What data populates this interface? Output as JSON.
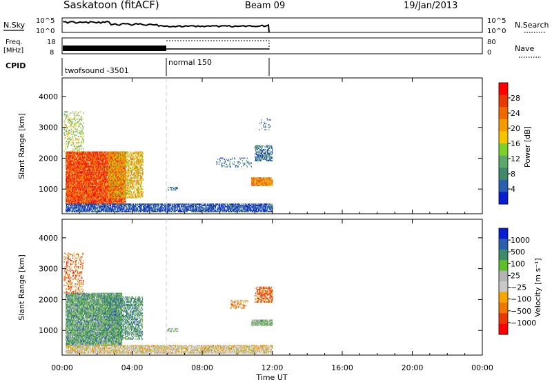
{
  "header": {
    "station": "Saskatoon (fitACF)",
    "beam": "Beam 09",
    "date": "19/Jan/2013"
  },
  "strips": {
    "nsky": {
      "label": "N.Sky",
      "tick_top": "10^5",
      "tick_bottom": "10^0",
      "right_tick_top": "10^5",
      "right_tick_bottom": "10^0"
    },
    "nsearch": {
      "label": "N.Search"
    },
    "freq": {
      "label_line1": "Freq.",
      "label_line2": "[MHz]",
      "tick_top": "18",
      "tick_bottom": "8",
      "right_tick_top": "80",
      "right_tick_bottom": "0"
    },
    "nave": {
      "label": "Nave"
    },
    "cpid": {
      "label": "CPID",
      "segment1": "twofsound -3501",
      "segment2": "normal 150"
    }
  },
  "colors": {
    "power": [
      "#0a1ed2",
      "#2a5fb0",
      "#3f8a6a",
      "#5ca86a",
      "#7dcf2a",
      "#f5c400",
      "#f59a00",
      "#f06a00",
      "#e83a00",
      "#ff0000"
    ],
    "velocity": [
      "#ff0000",
      "#e83a00",
      "#f07800",
      "#f5a500",
      "#c8c8c8",
      "#b4b4b4",
      "#5cc02a",
      "#3f8a6a",
      "#2a5fb0",
      "#0a1ed2"
    ]
  },
  "chart_data": [
    {
      "type": "heatmap",
      "panel": "power",
      "ylabel": "Slant Range [km]",
      "yticks": [
        "1000",
        "2000",
        "3000",
        "4000"
      ],
      "ylim": [
        200,
        4600
      ],
      "xlim": [
        0,
        24
      ],
      "xticks": [
        "00:00",
        "04:00",
        "08:00",
        "12:00",
        "16:00",
        "20:00",
        "00:00"
      ],
      "xlabel": "Time UT",
      "colorbar": {
        "label": "Power [dB]",
        "ticks": [
          "4",
          "8",
          "12",
          "16",
          "20",
          "24",
          "28"
        ],
        "range": [
          0,
          32
        ]
      },
      "regions": [
        {
          "t0": 0.2,
          "t1": 3.6,
          "r0": 500,
          "r1": 2200,
          "intensity": 0.82,
          "density": 0.92
        },
        {
          "t0": 0.1,
          "t1": 1.2,
          "r0": 2200,
          "r1": 3500,
          "intensity": 0.45,
          "density": 0.25
        },
        {
          "t0": 2.6,
          "t1": 4.6,
          "r0": 700,
          "r1": 2200,
          "intensity": 0.6,
          "density": 0.55
        },
        {
          "t0": 0.2,
          "t1": 12.0,
          "r0": 250,
          "r1": 500,
          "intensity": 0.12,
          "density": 0.75
        },
        {
          "t0": 6.0,
          "t1": 6.6,
          "r0": 950,
          "r1": 1050,
          "intensity": 0.15,
          "density": 0.4
        },
        {
          "t0": 10.8,
          "t1": 12.0,
          "r0": 1100,
          "r1": 1350,
          "intensity": 0.7,
          "density": 0.9
        },
        {
          "t0": 11.0,
          "t1": 12.0,
          "r0": 1900,
          "r1": 2400,
          "intensity": 0.2,
          "density": 0.55
        },
        {
          "t0": 8.8,
          "t1": 10.8,
          "r0": 1700,
          "r1": 2000,
          "intensity": 0.18,
          "density": 0.2
        },
        {
          "t0": 11.2,
          "t1": 11.9,
          "r0": 2900,
          "r1": 3300,
          "intensity": 0.2,
          "density": 0.15
        }
      ]
    },
    {
      "type": "heatmap",
      "panel": "velocity",
      "ylabel": "Slant Range [km]",
      "yticks": [
        "1000",
        "2000",
        "3000",
        "4000"
      ],
      "ylim": [
        200,
        4600
      ],
      "xlim": [
        0,
        24
      ],
      "xticks": [
        "00:00",
        "04:00",
        "08:00",
        "12:00",
        "16:00",
        "20:00",
        "00:00"
      ],
      "xlabel": "Time UT",
      "colorbar": {
        "label": "Velocity [m s⁻¹]",
        "ticks": [
          "1000",
          "500",
          "100",
          "25",
          "−25",
          "−100",
          "−500",
          "−1000"
        ],
        "range": [
          -1500,
          1500
        ]
      },
      "regions": [
        {
          "t0": 0.2,
          "t1": 3.4,
          "r0": 500,
          "r1": 2200,
          "intensity": 0.68,
          "density": 0.9
        },
        {
          "t0": 0.1,
          "t1": 1.2,
          "r0": 2200,
          "r1": 3500,
          "intensity": 0.2,
          "density": 0.25
        },
        {
          "t0": 2.4,
          "t1": 4.6,
          "r0": 700,
          "r1": 2100,
          "intensity": 0.72,
          "density": 0.6
        },
        {
          "t0": 0.2,
          "t1": 12.0,
          "r0": 250,
          "r1": 500,
          "intensity": 0.45,
          "density": 0.7
        },
        {
          "t0": 6.0,
          "t1": 6.6,
          "r0": 950,
          "r1": 1050,
          "intensity": 0.65,
          "density": 0.4
        },
        {
          "t0": 10.8,
          "t1": 12.0,
          "r0": 1150,
          "r1": 1350,
          "intensity": 0.62,
          "density": 0.9
        },
        {
          "t0": 11.0,
          "t1": 12.0,
          "r0": 1900,
          "r1": 2400,
          "intensity": 0.2,
          "density": 0.55
        },
        {
          "t0": 9.6,
          "t1": 10.6,
          "r0": 1700,
          "r1": 1950,
          "intensity": 0.3,
          "density": 0.35
        }
      ]
    }
  ]
}
